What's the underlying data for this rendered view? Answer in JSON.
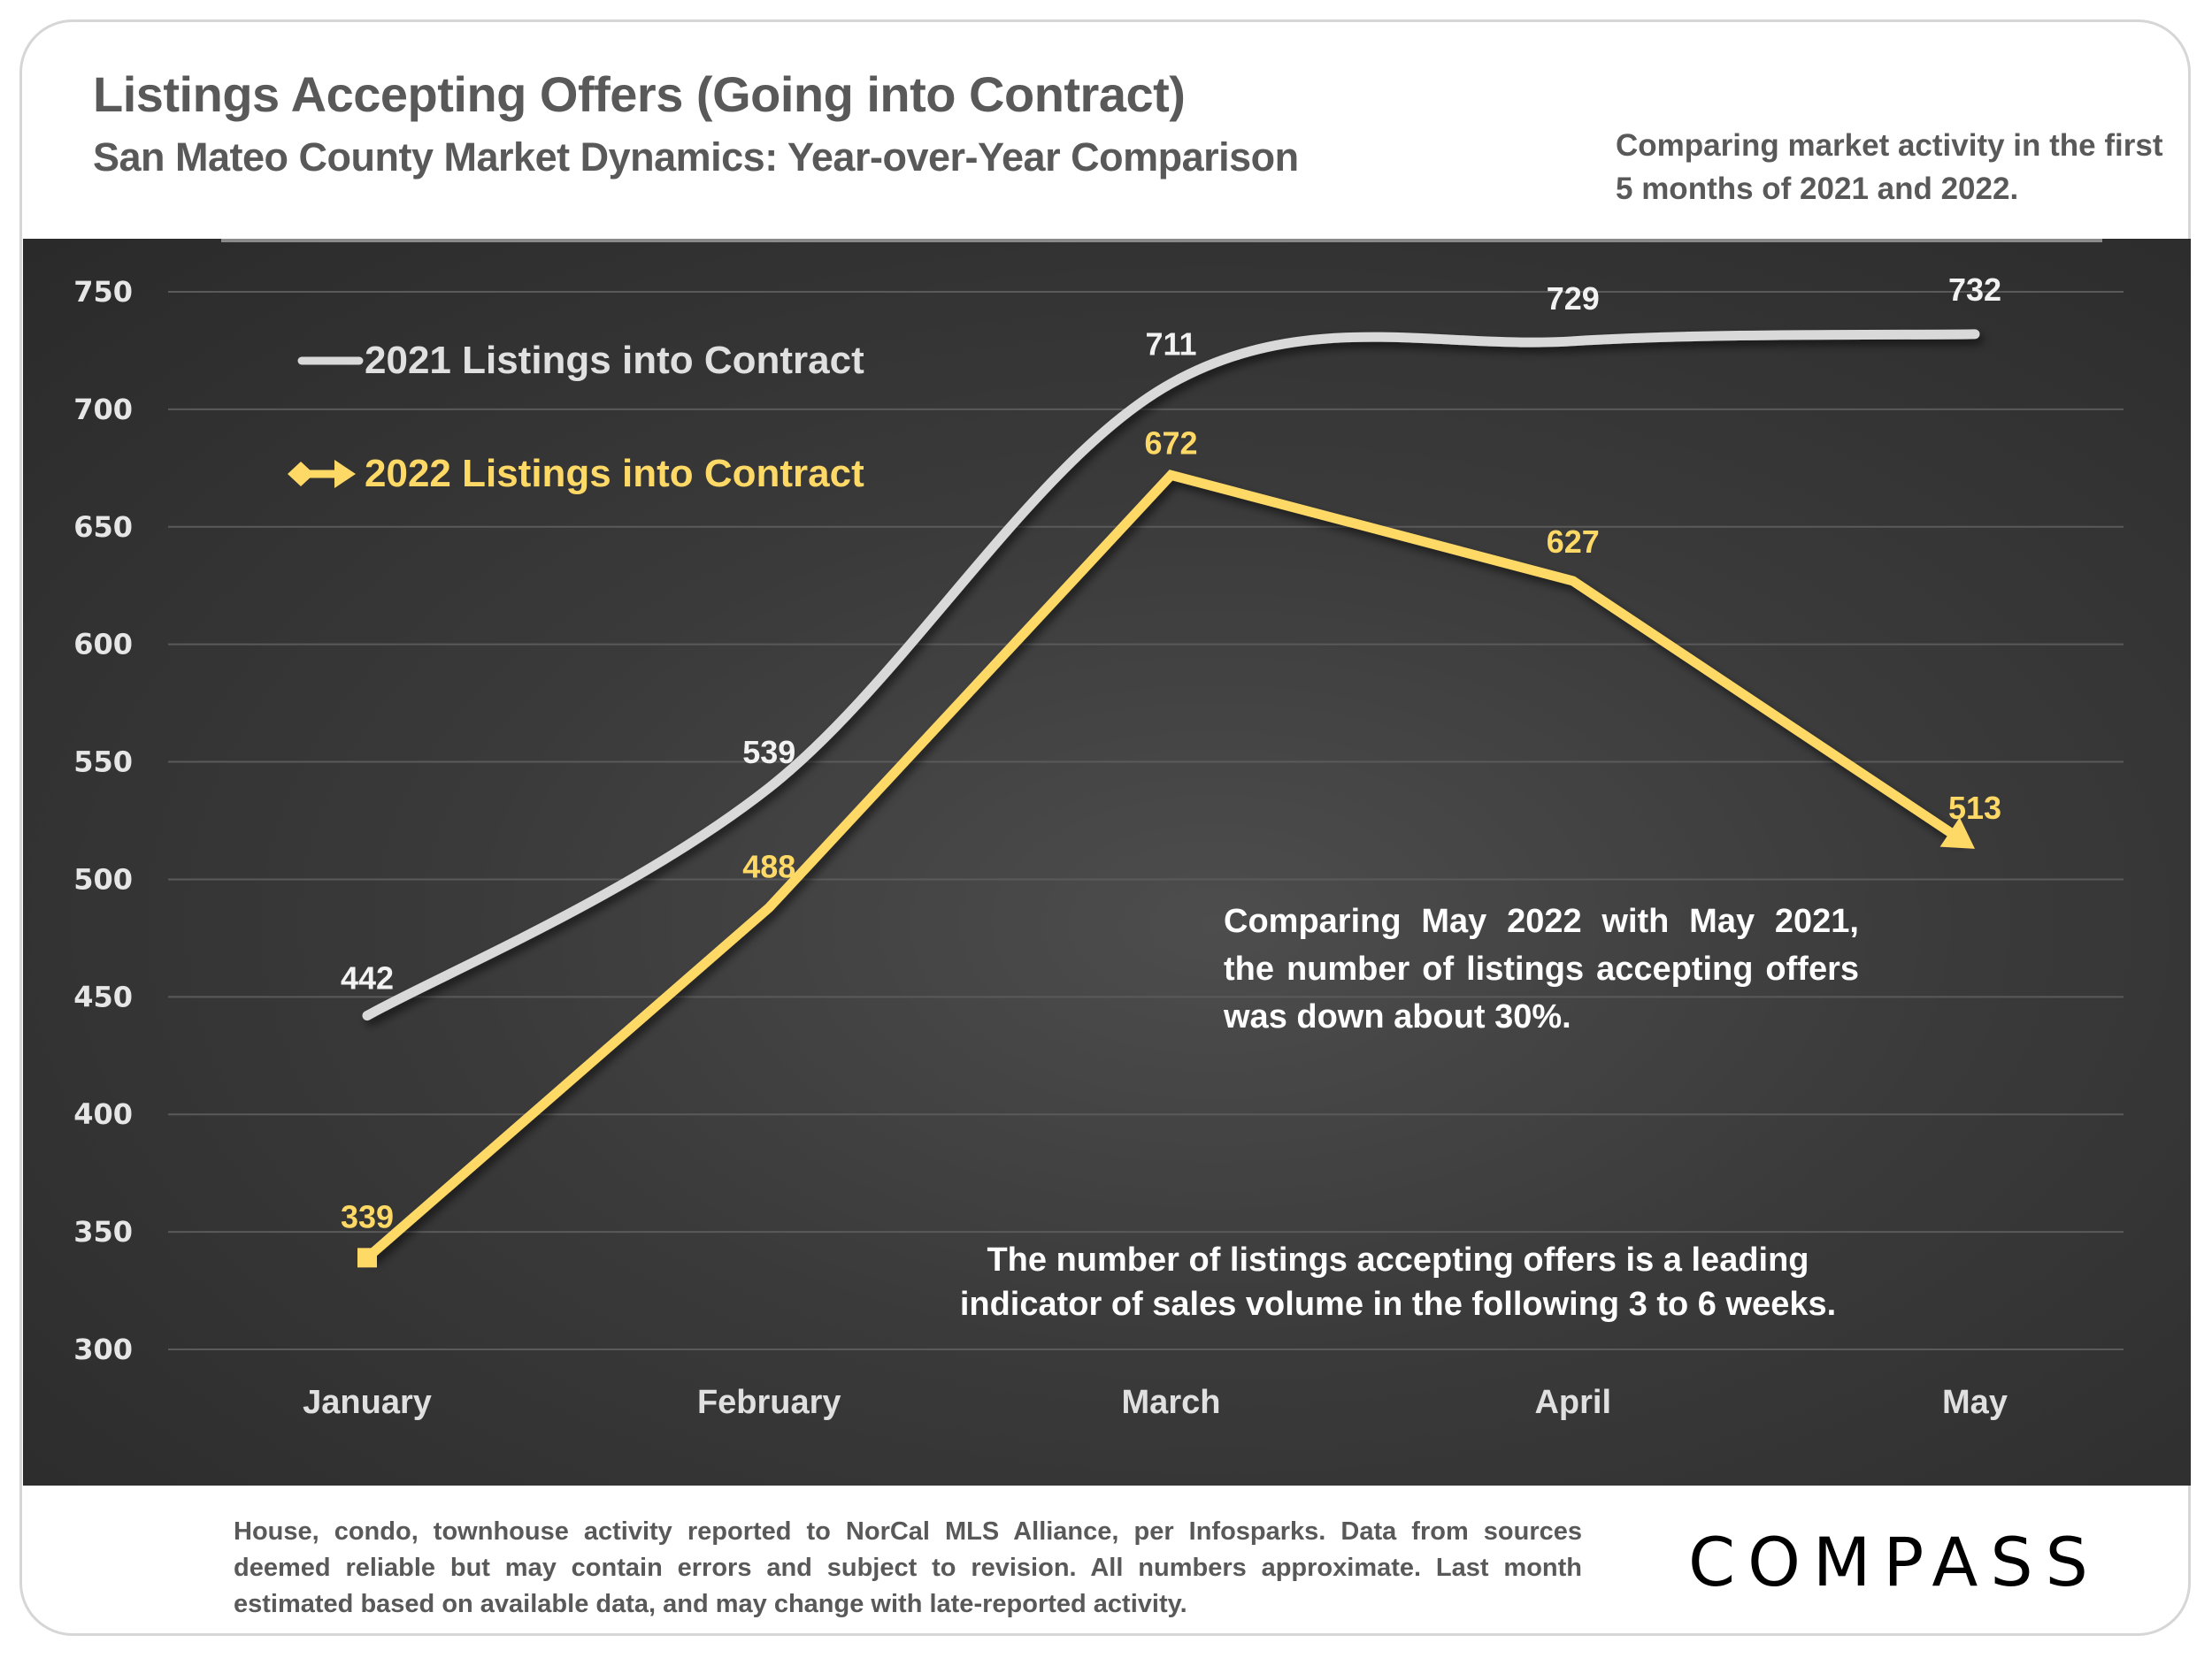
{
  "header": {
    "title": "Listings Accepting Offers (Going into Contract)",
    "subtitle": "San Mateo County Market Dynamics: Year-over-Year Comparison",
    "note": "Comparing market activity in the first 5 months of 2021 and 2022."
  },
  "annotations": {
    "comparison": "Comparing May 2022 with May 2021, the number of listings accepting offers was down about 30%.",
    "leading_indicator": "The number of listings accepting offers is a leading indicator of sales volume in the following 3 to 6 weeks."
  },
  "footer": {
    "disclaimer": "House, condo, townhouse activity reported to NorCal MLS Alliance, per Infosparks. Data from sources deemed reliable but may contain errors and subject to revision. All numbers approximate. Last month estimated based on available data, and may change with late-reported activity.",
    "logo": "COMPASS"
  },
  "colors": {
    "series_2021": "#d9d9d9",
    "series_2022": "#ffd966",
    "panel_bg": "#333333",
    "title_text": "#595959"
  },
  "chart_data": {
    "type": "line",
    "title": "Listings Accepting Offers (Going into Contract)",
    "subtitle": "San Mateo County Market Dynamics: Year-over-Year Comparison",
    "categories": [
      "January",
      "February",
      "March",
      "April",
      "May"
    ],
    "series": [
      {
        "name": "2021 Listings into Contract",
        "values": [
          442,
          539,
          711,
          729,
          732
        ],
        "smooth": true,
        "labels": [
          "442",
          "539",
          "711",
          "729",
          "732"
        ]
      },
      {
        "name": "2022 Listings into Contract",
        "values": [
          339,
          488,
          672,
          627,
          513
        ],
        "smooth": false,
        "labels": [
          "339",
          "488",
          "672",
          "627",
          "513"
        ]
      }
    ],
    "xlabel": "",
    "ylabel": "",
    "ylim": [
      300,
      750
    ],
    "yticks": [
      300,
      350,
      400,
      450,
      500,
      550,
      600,
      650,
      700,
      750
    ],
    "grid": true,
    "legend": "top-left"
  }
}
